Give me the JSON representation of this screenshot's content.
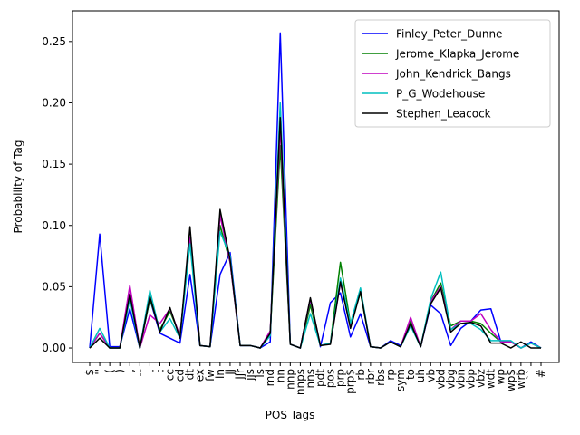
{
  "chart_data": {
    "type": "line",
    "xlabel": "POS Tags",
    "ylabel": "Probability of Tag",
    "categories": [
      "$",
      "''",
      "(",
      ")",
      ",",
      "--",
      ".",
      ":",
      "cc",
      "cd",
      "dt",
      "ex",
      "fw",
      "in",
      "jj",
      "jjr",
      "jjs",
      "ls",
      "md",
      "nn",
      "nnp",
      "nnps",
      "nns",
      "pdt",
      "pos",
      "prp",
      "prp$",
      "rb",
      "rbr",
      "rbs",
      "rp",
      "sym",
      "to",
      "uh",
      "vb",
      "vbd",
      "vbg",
      "vbn",
      "vbp",
      "vbz",
      "wdt",
      "wp",
      "wp$",
      "wrb",
      "``",
      "#"
    ],
    "series": [
      {
        "name": "Finley_Peter_Dunne",
        "color": "#0000ff",
        "values": [
          0,
          0.093,
          0.001,
          0.001,
          0.032,
          0,
          0.04,
          0.012,
          0.008,
          0.004,
          0.06,
          0.002,
          0.001,
          0.06,
          0.078,
          0.002,
          0.002,
          0,
          0.005,
          0.257,
          0.003,
          0,
          0.04,
          0.001,
          0.037,
          0.045,
          0.009,
          0.028,
          0.001,
          0,
          0.006,
          0.002,
          0.02,
          0.001,
          0.035,
          0.028,
          0.002,
          0.016,
          0.022,
          0.031,
          0.032,
          0.005,
          0.005,
          0,
          0.005,
          0
        ]
      },
      {
        "name": "Jerome_Klapka_Jerome",
        "color": "#008000",
        "values": [
          0,
          0.012,
          0,
          0,
          0.044,
          0,
          0.04,
          0.015,
          0.03,
          0.01,
          0.09,
          0.002,
          0.001,
          0.1,
          0.07,
          0.002,
          0.002,
          0,
          0.012,
          0.165,
          0.003,
          0,
          0.035,
          0.002,
          0.004,
          0.07,
          0.02,
          0.045,
          0.001,
          0,
          0.005,
          0.001,
          0.022,
          0.001,
          0.038,
          0.053,
          0.018,
          0.022,
          0.022,
          0.02,
          0.012,
          0.005,
          0.005,
          0,
          0.004,
          0
        ]
      },
      {
        "name": "John_Kendrick_Bangs",
        "color": "#bf00bf",
        "values": [
          0,
          0.012,
          0,
          0,
          0.051,
          0,
          0.027,
          0.02,
          0.032,
          0.01,
          0.09,
          0.002,
          0.001,
          0.108,
          0.07,
          0.002,
          0.002,
          0,
          0.014,
          0.18,
          0.003,
          0,
          0.04,
          0.002,
          0.004,
          0.053,
          0.019,
          0.047,
          0.001,
          0,
          0.005,
          0.001,
          0.025,
          0.001,
          0.038,
          0.05,
          0.015,
          0.022,
          0.022,
          0.028,
          0.015,
          0.005,
          0.005,
          0,
          0.004,
          0
        ]
      },
      {
        "name": "P_G_Wodehouse",
        "color": "#00bfbf",
        "values": [
          0,
          0.016,
          0,
          0,
          0.04,
          0,
          0.047,
          0.013,
          0.024,
          0.008,
          0.085,
          0.002,
          0.001,
          0.095,
          0.075,
          0.002,
          0.002,
          0,
          0.01,
          0.2,
          0.003,
          0,
          0.028,
          0.002,
          0.004,
          0.057,
          0.02,
          0.049,
          0.001,
          0,
          0.005,
          0.001,
          0.018,
          0.001,
          0.04,
          0.062,
          0.015,
          0.02,
          0.02,
          0.015,
          0.006,
          0.006,
          0.006,
          0,
          0.004,
          0
        ]
      },
      {
        "name": "Stephen_Leacock",
        "color": "#000000",
        "values": [
          0,
          0.008,
          0,
          0,
          0.044,
          0,
          0.042,
          0.013,
          0.033,
          0.008,
          0.099,
          0.002,
          0.001,
          0.113,
          0.072,
          0.002,
          0.002,
          0,
          0.012,
          0.188,
          0.003,
          0,
          0.041,
          0.002,
          0.003,
          0.054,
          0.016,
          0.046,
          0.001,
          0,
          0.005,
          0.001,
          0.02,
          0.001,
          0.036,
          0.049,
          0.013,
          0.02,
          0.021,
          0.018,
          0.004,
          0.004,
          0,
          0.005,
          0,
          0
        ]
      }
    ],
    "ylim": [
      -0.0118,
      0.275
    ],
    "yticks": [
      {
        "value": 0,
        "label": "0.00"
      },
      {
        "value": 0.05,
        "label": "0.05"
      },
      {
        "value": 0.1,
        "label": "0.10"
      },
      {
        "value": 0.15,
        "label": "0.15"
      },
      {
        "value": 0.2,
        "label": "0.20"
      },
      {
        "value": 0.25,
        "label": "0.25"
      }
    ],
    "legend": "upper right",
    "grid": false
  }
}
